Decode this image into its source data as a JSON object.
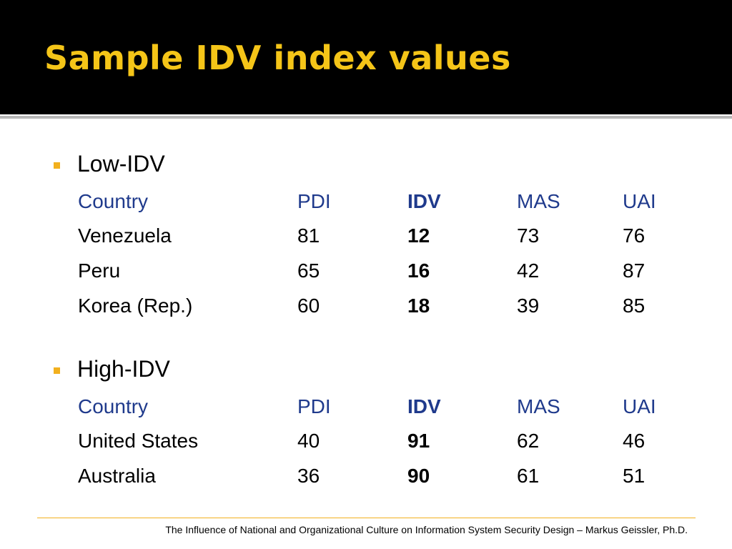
{
  "slide": {
    "title": "Sample IDV index values"
  },
  "colors": {
    "header_bg": "#000000",
    "title": "#f5c518",
    "bullet": "#f2b01e",
    "column_header": "#1f3a8c"
  },
  "sections": [
    {
      "label": "Low-IDV",
      "columns": [
        "Country",
        "PDI",
        "IDV",
        "MAS",
        "UAI"
      ],
      "rows": [
        [
          "Venezuela",
          "81",
          "12",
          "73",
          "76"
        ],
        [
          "Peru",
          "65",
          "16",
          "42",
          "87"
        ],
        [
          "Korea (Rep.)",
          "60",
          "18",
          "39",
          "85"
        ]
      ]
    },
    {
      "label": "High-IDV",
      "columns": [
        "Country",
        "PDI",
        "IDV",
        "MAS",
        "UAI"
      ],
      "rows": [
        [
          "United States",
          "40",
          "91",
          "62",
          "46"
        ],
        [
          "Australia",
          "36",
          "90",
          "61",
          "51"
        ]
      ]
    }
  ],
  "footer": {
    "text": "The Influence of National and Organizational Culture on Information System Security Design – Markus Geissler, Ph.D."
  }
}
